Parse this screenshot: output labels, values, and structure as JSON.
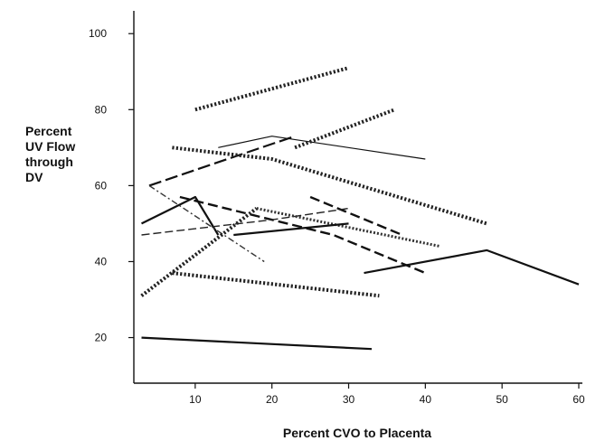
{
  "chart_data": {
    "type": "line",
    "xlabel": "Percent CVO to Placenta",
    "ylabel_lines": [
      "Percent",
      "UV Flow",
      "through",
      "DV"
    ],
    "xlim": [
      2,
      60
    ],
    "ylim": [
      8,
      106
    ],
    "xticks": [
      10,
      20,
      30,
      40,
      50,
      60
    ],
    "yticks": [
      20,
      40,
      60,
      80,
      100
    ],
    "grid": false,
    "series": [
      {
        "style": "dotted-thick",
        "x": [
          10,
          30
        ],
        "y": [
          80,
          91
        ]
      },
      {
        "style": "thin",
        "x": [
          13,
          20,
          40
        ],
        "y": [
          70,
          73,
          67
        ]
      },
      {
        "style": "dashed-long",
        "x": [
          4,
          23
        ],
        "y": [
          60,
          73
        ]
      },
      {
        "style": "dotted-thick",
        "x": [
          23,
          36
        ],
        "y": [
          70,
          80
        ]
      },
      {
        "style": "dotted-thick",
        "x": [
          7,
          20,
          48
        ],
        "y": [
          70,
          67,
          50
        ]
      },
      {
        "style": "solid",
        "x": [
          3,
          10,
          13
        ],
        "y": [
          50,
          57,
          47
        ]
      },
      {
        "style": "dashdot-thin",
        "x": [
          4,
          19
        ],
        "y": [
          60,
          40
        ]
      },
      {
        "style": "dashed-thick",
        "x": [
          8,
          28,
          40
        ],
        "y": [
          57,
          47,
          37
        ]
      },
      {
        "style": "dashed-thick",
        "x": [
          25,
          37
        ],
        "y": [
          57,
          47
        ]
      },
      {
        "style": "dashed-thin",
        "x": [
          3,
          20,
          30
        ],
        "y": [
          47,
          51,
          54
        ]
      },
      {
        "style": "dotted-medium",
        "x": [
          18,
          42
        ],
        "y": [
          54,
          44
        ]
      },
      {
        "style": "solid",
        "x": [
          15,
          30
        ],
        "y": [
          47,
          50
        ]
      },
      {
        "style": "dotted-thick",
        "x": [
          3,
          18
        ],
        "y": [
          31,
          54
        ]
      },
      {
        "style": "dotted-thick",
        "x": [
          7,
          34
        ],
        "y": [
          37,
          31
        ]
      },
      {
        "style": "solid",
        "x": [
          32,
          48,
          60
        ],
        "y": [
          37,
          43,
          34
        ]
      },
      {
        "style": "solid",
        "x": [
          3,
          33
        ],
        "y": [
          20,
          17
        ]
      }
    ]
  }
}
